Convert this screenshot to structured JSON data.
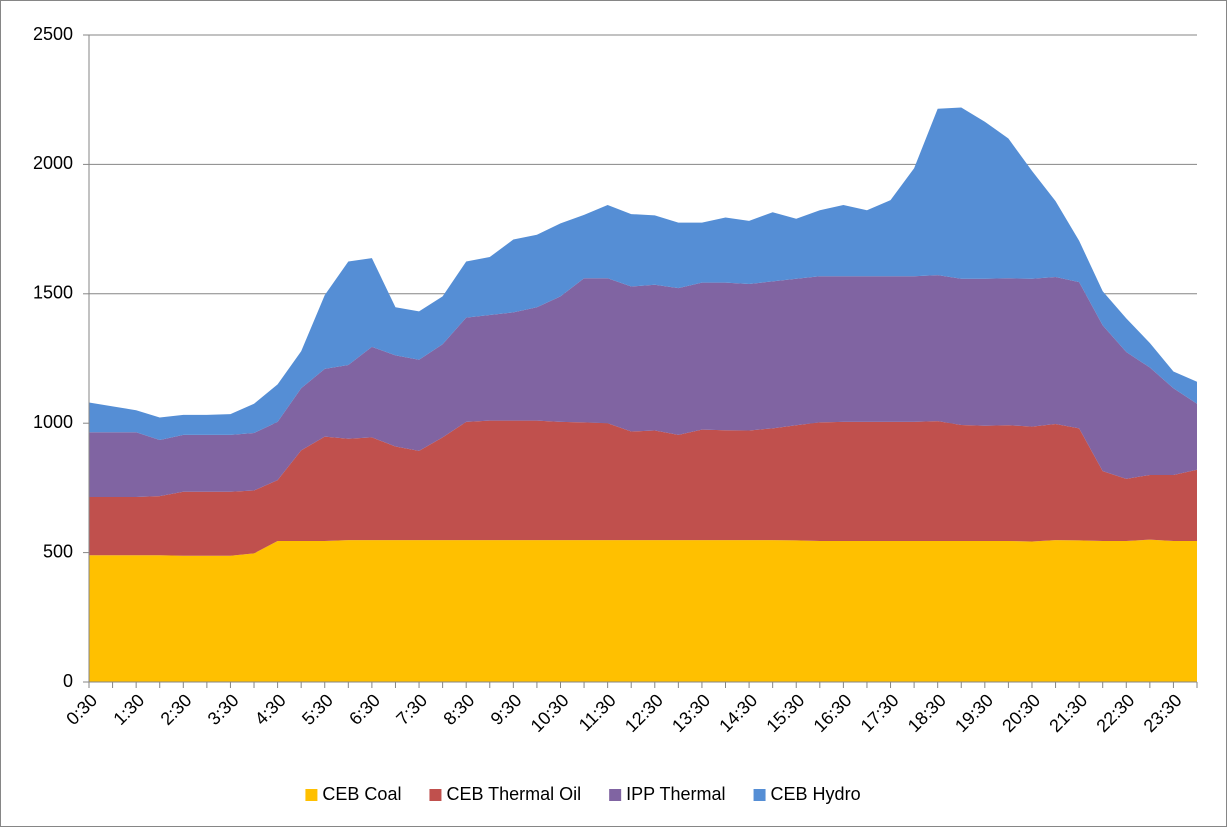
{
  "chart_data": {
    "type": "stacked_area",
    "categories": [
      "0:30",
      null,
      "1:30",
      null,
      "2:30",
      null,
      "3:30",
      null,
      "4:30",
      null,
      "5:30",
      null,
      "6:30",
      null,
      "7:30",
      null,
      "8:30",
      null,
      "9:30",
      null,
      "10:30",
      null,
      "11:30",
      null,
      "12:30",
      null,
      "13:30",
      null,
      "14:30",
      null,
      "15:30",
      null,
      "16:30",
      null,
      "17:30",
      null,
      "18:30",
      null,
      "19:30",
      null,
      "20:30",
      null,
      "21:30",
      null,
      "22:30",
      null,
      "23:30",
      null
    ],
    "series": [
      {
        "name": "CEB Coal",
        "color": "#ffc000",
        "values": [
          490,
          490,
          490,
          490,
          488,
          488,
          488,
          497,
          545,
          545,
          545,
          548,
          548,
          548,
          548,
          548,
          548,
          548,
          548,
          548,
          548,
          548,
          548,
          548,
          548,
          548,
          548,
          548,
          548,
          548,
          547,
          545,
          545,
          545,
          545,
          545,
          545,
          545,
          545,
          545,
          543,
          548,
          547,
          545,
          545,
          550,
          545,
          545
        ]
      },
      {
        "name": "CEB Thermal Oil",
        "color": "#c0504d",
        "values": [
          225,
          225,
          225,
          228,
          247,
          247,
          247,
          243,
          235,
          350,
          403,
          392,
          397,
          362,
          345,
          397,
          457,
          462,
          462,
          462,
          457,
          455,
          452,
          420,
          424,
          407,
          427,
          425,
          424,
          432,
          445,
          458,
          460,
          460,
          460,
          460,
          463,
          448,
          445,
          447,
          444,
          449,
          433,
          270,
          240,
          250,
          255,
          275
        ]
      },
      {
        "name": "IPP Thermal",
        "color": "#8064a2",
        "values": [
          250,
          250,
          250,
          217,
          220,
          220,
          220,
          222,
          225,
          240,
          262,
          285,
          350,
          352,
          352,
          360,
          403,
          408,
          418,
          438,
          485,
          557,
          560,
          560,
          563,
          567,
          568,
          570,
          566,
          568,
          566,
          565,
          563,
          563,
          563,
          563,
          564,
          565,
          568,
          568,
          571,
          568,
          565,
          563,
          490,
          415,
          335,
          255
        ]
      },
      {
        "name": "CEB Hydro",
        "color": "#558ed5",
        "values": [
          115,
          100,
          85,
          87,
          77,
          77,
          80,
          113,
          145,
          143,
          285,
          400,
          343,
          186,
          187,
          185,
          217,
          224,
          282,
          280,
          282,
          245,
          283,
          280,
          268,
          253,
          232,
          252,
          244,
          267,
          232,
          255,
          275,
          255,
          294,
          417,
          643,
          662,
          607,
          540,
          417,
          293,
          160,
          132,
          130,
          95,
          65,
          85
        ]
      }
    ],
    "ylim": [
      0,
      2500
    ],
    "yticks": [
      0,
      500,
      1000,
      1500,
      2000,
      2500
    ],
    "grid": true,
    "legend": "bottom"
  }
}
